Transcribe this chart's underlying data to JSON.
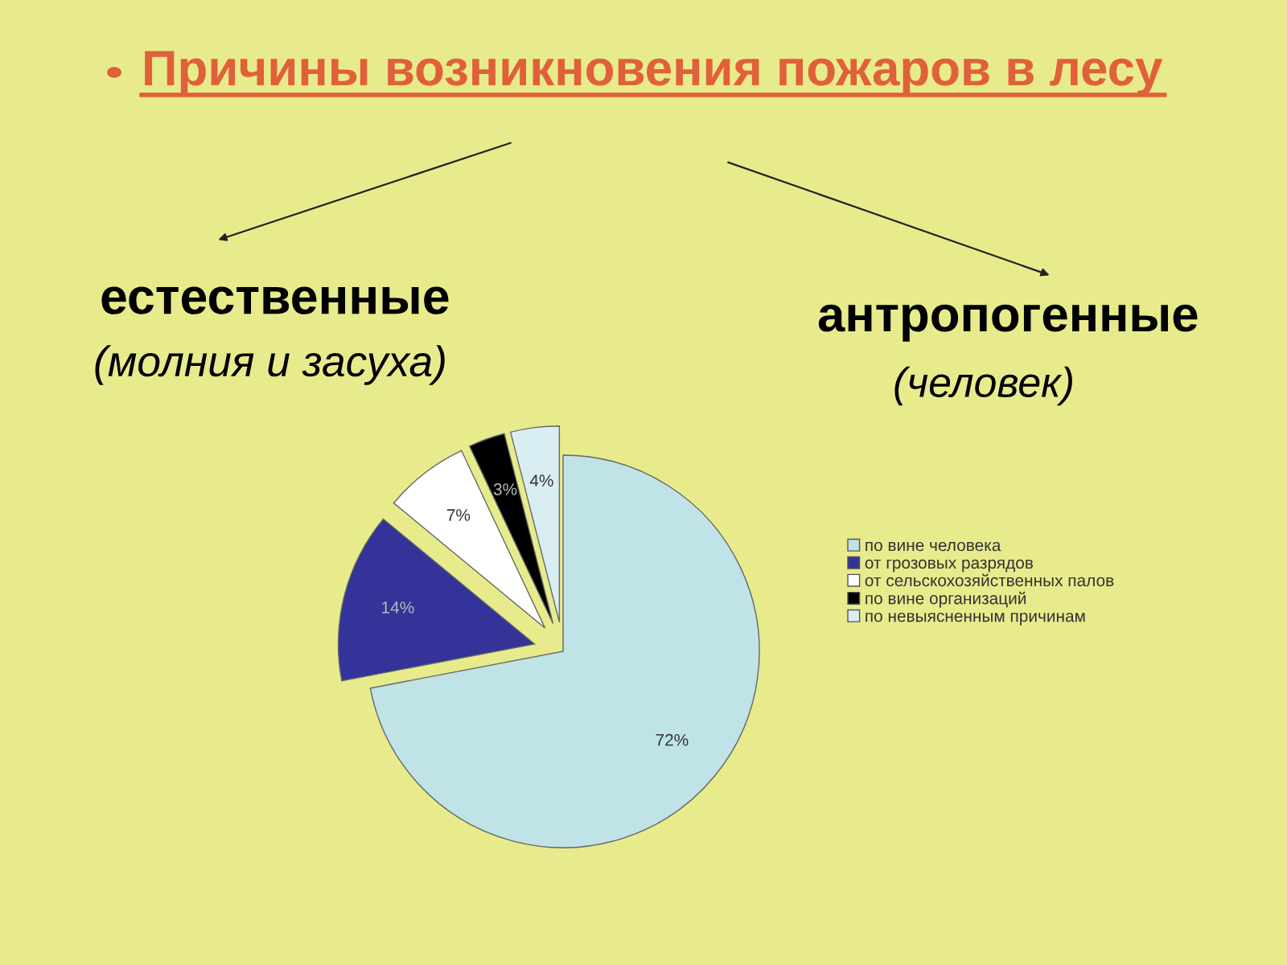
{
  "chart_data": {
    "type": "pie",
    "title": "Причины возникновения пожаров в лесу",
    "categories": [
      "по вине человека",
      "от грозовых разрядов",
      "от сельскохозяйственных палов",
      "по вине организаций",
      "по невыясненным причинам"
    ],
    "values": [
      72,
      14,
      7,
      3,
      4
    ],
    "colors": [
      "#bfe3e6",
      "#333399",
      "#ffffff",
      "#000000",
      "#d9eef2"
    ],
    "value_labels": [
      "72%",
      "14%",
      "7%",
      "3%",
      "4%"
    ],
    "legend": "right",
    "annotations": [
      "естественные",
      "(молния и засуха)",
      "антропогенные",
      "(человек)"
    ]
  }
}
